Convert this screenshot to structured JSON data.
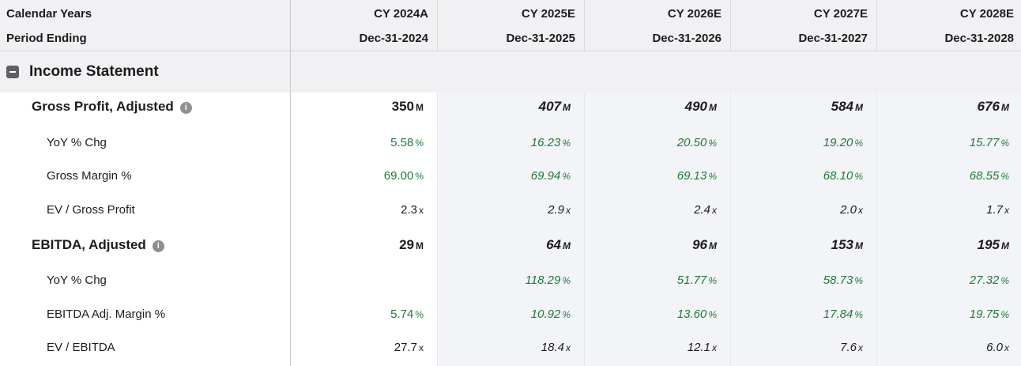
{
  "header": {
    "label_row1": "Calendar Years",
    "label_row2": "Period Ending",
    "columns": [
      {
        "year": "CY 2024A",
        "period": "Dec-31-2024"
      },
      {
        "year": "CY 2025E",
        "period": "Dec-31-2025"
      },
      {
        "year": "CY 2026E",
        "period": "Dec-31-2026"
      },
      {
        "year": "CY 2027E",
        "period": "Dec-31-2027"
      },
      {
        "year": "CY 2028E",
        "period": "Dec-31-2028"
      }
    ]
  },
  "section": {
    "title": "Income Statement",
    "toggle_icon": "collapse-icon"
  },
  "rows": [
    {
      "label": "Gross Profit, Adjusted",
      "info": "i",
      "values": [
        {
          "v": "350",
          "u": "M"
        },
        {
          "v": "407",
          "u": "M"
        },
        {
          "v": "490",
          "u": "M"
        },
        {
          "v": "584",
          "u": "M"
        },
        {
          "v": "676",
          "u": "M"
        }
      ]
    },
    {
      "label": "YoY % Chg",
      "values": [
        {
          "v": "5.58",
          "u": "%"
        },
        {
          "v": "16.23",
          "u": "%"
        },
        {
          "v": "20.50",
          "u": "%"
        },
        {
          "v": "19.20",
          "u": "%"
        },
        {
          "v": "15.77",
          "u": "%"
        }
      ]
    },
    {
      "label": "Gross Margin %",
      "values": [
        {
          "v": "69.00",
          "u": "%"
        },
        {
          "v": "69.94",
          "u": "%"
        },
        {
          "v": "69.13",
          "u": "%"
        },
        {
          "v": "68.10",
          "u": "%"
        },
        {
          "v": "68.55",
          "u": "%"
        }
      ]
    },
    {
      "label": "EV / Gross Profit",
      "values": [
        {
          "v": "2.3",
          "u": "x"
        },
        {
          "v": "2.9",
          "u": "x"
        },
        {
          "v": "2.4",
          "u": "x"
        },
        {
          "v": "2.0",
          "u": "x"
        },
        {
          "v": "1.7",
          "u": "x"
        }
      ]
    },
    {
      "label": "EBITDA, Adjusted",
      "info": "i",
      "values": [
        {
          "v": "29",
          "u": "M"
        },
        {
          "v": "64",
          "u": "M"
        },
        {
          "v": "96",
          "u": "M"
        },
        {
          "v": "153",
          "u": "M"
        },
        {
          "v": "195",
          "u": "M"
        }
      ]
    },
    {
      "label": "YoY % Chg",
      "values": [
        {
          "v": "",
          "u": ""
        },
        {
          "v": "118.29",
          "u": "%"
        },
        {
          "v": "51.77",
          "u": "%"
        },
        {
          "v": "58.73",
          "u": "%"
        },
        {
          "v": "27.32",
          "u": "%"
        }
      ]
    },
    {
      "label": "EBITDA Adj. Margin %",
      "values": [
        {
          "v": "5.74",
          "u": "%"
        },
        {
          "v": "10.92",
          "u": "%"
        },
        {
          "v": "13.60",
          "u": "%"
        },
        {
          "v": "17.84",
          "u": "%"
        },
        {
          "v": "19.75",
          "u": "%"
        }
      ]
    },
    {
      "label": "EV / EBITDA",
      "values": [
        {
          "v": "27.7",
          "u": "x"
        },
        {
          "v": "18.4",
          "u": "x"
        },
        {
          "v": "12.1",
          "u": "x"
        },
        {
          "v": "7.6",
          "u": "x"
        },
        {
          "v": "6.0",
          "u": "x"
        }
      ]
    }
  ],
  "colors": {
    "positive": "#1e7a35",
    "header_bg": "#f1f1f3",
    "estimate_bg": "#f2f4f8"
  }
}
